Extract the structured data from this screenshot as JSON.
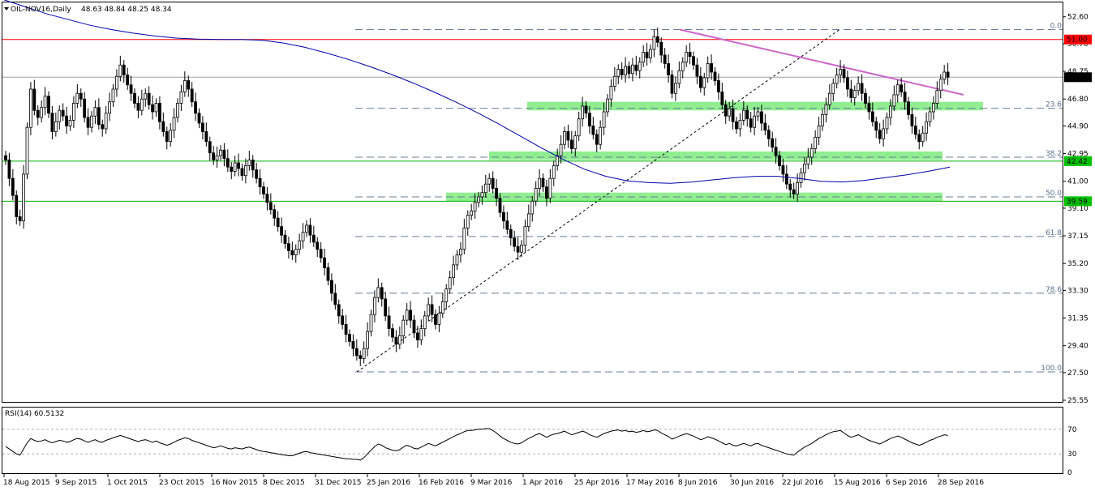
{
  "chart_data": {
    "type": "candlestick",
    "symbol_header": "OIL-NOV16,Daily",
    "ohlc_header": "48.63 48.84 48.25 48.34",
    "last_price": "48.34",
    "ylim": [
      25.55,
      53.5
    ],
    "y_ticks": [
      "52.60",
      "50.70",
      "48.75",
      "46.80",
      "44.90",
      "42.95",
      "41.00",
      "39.10",
      "37.15",
      "35.20",
      "33.30",
      "31.35",
      "29.40",
      "27.50",
      "25.55"
    ],
    "x_ticks": [
      "18 Aug 2015",
      "9 Sep 2015",
      "1 Oct 2015",
      "23 Oct 2015",
      "16 Nov 2015",
      "8 Dec 2015",
      "31 Dec 2015",
      "25 Jan 2016",
      "16 Feb 2016",
      "9 Mar 2016",
      "1 Apr 2016",
      "25 Apr 2016",
      "17 May 2016",
      "8 Jun 2016",
      "30 Jun 2016",
      "22 Jul 2016",
      "15 Aug 2016",
      "6 Sep 2016",
      "28 Sep 2016"
    ],
    "closes": [
      42.5,
      41.2,
      40.0,
      38.5,
      38.2,
      41.5,
      44.8,
      47.5,
      46.0,
      45.5,
      46.2,
      47.0,
      45.8,
      44.5,
      45.2,
      46.0,
      45.6,
      44.9,
      45.3,
      46.5,
      47.2,
      46.8,
      45.5,
      44.8,
      45.6,
      46.2,
      45.0,
      44.7,
      45.8,
      46.6,
      47.5,
      48.4,
      49.2,
      48.5,
      47.8,
      47.2,
      46.5,
      46.0,
      46.8,
      47.2,
      46.4,
      45.9,
      46.5,
      45.2,
      44.5,
      43.8,
      44.6,
      45.5,
      46.5,
      47.3,
      48.1,
      47.5,
      46.6,
      45.8,
      45.1,
      44.5,
      43.8,
      43.0,
      42.5,
      42.8,
      43.2,
      42.6,
      42.0,
      41.7,
      42.3,
      41.9,
      41.4,
      42.1,
      42.5,
      41.8,
      41.2,
      40.6,
      40.1,
      39.5,
      39.0,
      38.4,
      37.8,
      37.2,
      36.6,
      36.1,
      35.8,
      36.2,
      36.8,
      37.4,
      37.9,
      37.2,
      36.7,
      36.2,
      35.6,
      34.9,
      34.0,
      33.1,
      32.3,
      31.5,
      30.9,
      30.2,
      29.7,
      29.2,
      28.7,
      28.5,
      29.2,
      30.4,
      31.6,
      32.8,
      33.5,
      32.7,
      31.5,
      30.6,
      30.0,
      29.5,
      30.1,
      31.2,
      31.9,
      31.2,
      30.3,
      29.8,
      30.6,
      31.5,
      32.3,
      31.6,
      30.9,
      31.7,
      32.5,
      33.4,
      34.2,
      35.1,
      35.8,
      36.2,
      37.7,
      38.6,
      38.9,
      39.5,
      39.9,
      40.2,
      40.8,
      41.2,
      40.5,
      39.8,
      38.8,
      38.2,
      37.6,
      37.0,
      36.4,
      36.0,
      36.5,
      37.8,
      38.7,
      39.6,
      40.5,
      41.2,
      40.6,
      39.8,
      41.2,
      42.1,
      42.8,
      43.6,
      44.5,
      43.9,
      43.3,
      44.2,
      45.4,
      46.3,
      45.8,
      44.9,
      44.3,
      43.6,
      44.8,
      45.9,
      46.8,
      47.7,
      48.4,
      48.9,
      48.5,
      49.1,
      48.6,
      49.2,
      48.8,
      49.4,
      50.1,
      49.7,
      50.3,
      51.2,
      50.8,
      49.9,
      49.3,
      48.5,
      47.2,
      47.9,
      48.8,
      49.4,
      50.1,
      49.8,
      49.2,
      48.4,
      47.6,
      48.3,
      49.3,
      48.7,
      48.1,
      47.3,
      46.4,
      45.6,
      46.1,
      45.2,
      44.7,
      45.3,
      46.0,
      45.4,
      44.8,
      45.6,
      45.9,
      45.1,
      44.6,
      44.0,
      43.4,
      42.8,
      42.1,
      41.5,
      40.8,
      40.4,
      40.1,
      40.9,
      41.6,
      42.2,
      42.7,
      43.3,
      44.1,
      44.9,
      45.7,
      46.4,
      47.2,
      47.9,
      48.5,
      48.9,
      48.3,
      47.5,
      46.9,
      47.4,
      47.9,
      47.2,
      46.5,
      45.9,
      45.2,
      44.6,
      44.0,
      44.7,
      45.5,
      46.3,
      47.1,
      47.8,
      47.3,
      46.6,
      45.7,
      44.9,
      44.3,
      43.8,
      44.4,
      45.2,
      45.9,
      46.5,
      47.4,
      48.2,
      48.7,
      48.34
    ],
    "ma_line": [
      53.8,
      53.3,
      52.8,
      52.4,
      52.0,
      51.7,
      51.45,
      51.25,
      51.1,
      51.03,
      51.0,
      51.0,
      50.95,
      50.75,
      50.45,
      50.05,
      49.6,
      49.1,
      48.55,
      47.95,
      47.3,
      46.6,
      45.85,
      45.05,
      44.2,
      43.35,
      42.55,
      41.85,
      41.35,
      41.02,
      40.9,
      40.85,
      40.95,
      41.1,
      41.25,
      41.35,
      41.35,
      41.2,
      41.0,
      40.95,
      41.05,
      41.25,
      41.45,
      41.7,
      42.0
    ],
    "horizontal_levels": [
      {
        "label": "51.00",
        "value": 51.0,
        "color": "#ff0000"
      },
      {
        "label": "42.42",
        "value": 42.42,
        "color": "#00b000"
      },
      {
        "label": "39.59",
        "value": 39.59,
        "color": "#00b000"
      }
    ],
    "fib_levels": [
      {
        "label": "0.0",
        "value": 51.7
      },
      {
        "label": "23.6",
        "value": 46.15
      },
      {
        "label": "38.2",
        "value": 42.7
      },
      {
        "label": "50.0",
        "value": 39.9
      },
      {
        "label": "61.8",
        "value": 37.1
      },
      {
        "label": "78.6",
        "value": 33.1
      },
      {
        "label": "100.0",
        "value": 27.55
      }
    ],
    "support_zones": [
      {
        "low": 46.0,
        "high": 46.6
      },
      {
        "low": 42.5,
        "high": 43.1
      },
      {
        "low": 39.6,
        "high": 40.2
      }
    ],
    "rsi": {
      "label": "RSI(14) 60.5132",
      "y_ticks": [
        "70",
        "30",
        "0"
      ],
      "values": [
        42,
        38,
        34,
        30,
        28,
        38,
        48,
        55,
        52,
        50,
        51,
        53,
        50,
        48,
        50,
        52,
        51,
        49,
        50,
        53,
        55,
        54,
        51,
        49,
        51,
        53,
        50,
        49,
        52,
        54,
        56,
        58,
        60,
        58,
        56,
        54,
        52,
        50,
        52,
        53,
        51,
        49,
        51,
        48,
        46,
        44,
        46,
        49,
        52,
        54,
        56,
        55,
        52,
        50,
        48,
        46,
        44,
        42,
        40,
        41,
        43,
        41,
        39,
        38,
        40,
        39,
        38,
        40,
        41,
        39,
        37,
        35,
        34,
        33,
        32,
        31,
        30,
        29,
        28,
        27,
        27,
        29,
        31,
        33,
        34,
        32,
        31,
        30,
        29,
        28,
        27,
        26,
        25,
        24,
        23,
        22,
        22,
        21,
        21,
        20,
        24,
        30,
        36,
        42,
        46,
        44,
        40,
        38,
        36,
        35,
        37,
        41,
        44,
        42,
        39,
        38,
        41,
        44,
        47,
        45,
        43,
        46,
        49,
        52,
        55,
        58,
        61,
        63,
        66,
        68,
        68,
        69,
        70,
        70,
        71,
        71,
        68,
        64,
        59,
        55,
        52,
        49,
        47,
        46,
        48,
        52,
        55,
        58,
        61,
        63,
        60,
        57,
        60,
        62,
        63,
        65,
        67,
        64,
        61,
        63,
        65,
        67,
        65,
        61,
        59,
        57,
        60,
        63,
        65,
        67,
        68,
        69,
        67,
        68,
        66,
        67,
        65,
        66,
        68,
        66,
        67,
        69,
        68,
        64,
        61,
        58,
        54,
        56,
        59,
        61,
        63,
        61,
        59,
        56,
        53,
        55,
        58,
        56,
        54,
        51,
        48,
        45,
        47,
        44,
        43,
        45,
        47,
        45,
        43,
        46,
        47,
        44,
        42,
        40,
        38,
        36,
        34,
        32,
        30,
        29,
        28,
        33,
        37,
        41,
        44,
        47,
        51,
        55,
        58,
        61,
        64,
        66,
        67,
        68,
        64,
        60,
        57,
        59,
        61,
        58,
        55,
        52,
        50,
        48,
        46,
        49,
        52,
        55,
        57,
        59,
        57,
        54,
        51,
        48,
        46,
        44,
        46,
        49,
        52,
        54,
        57,
        59,
        61,
        60
      ]
    }
  }
}
